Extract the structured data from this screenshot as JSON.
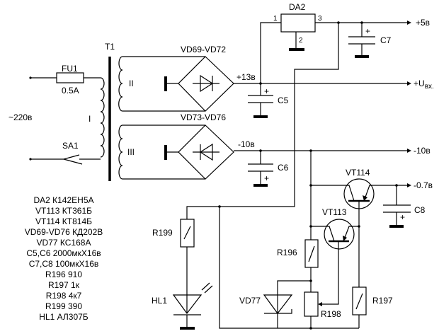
{
  "labels": {
    "t1": "T1",
    "fu1": "FU1",
    "fu1_rating": "0.5A",
    "mains": "~220в",
    "winding_1": "I",
    "winding_2": "II",
    "winding_3": "III",
    "sa1": "SA1",
    "bridge_1": "VD69-VD72",
    "bridge_2": "VD73-VD76",
    "da2": "DA2",
    "pin1": "1",
    "pin2": "2",
    "pin3": "3",
    "v13": "+13в",
    "vminus10": "-10в",
    "c5": "C5",
    "c6": "C6",
    "c7": "C7",
    "c8": "C8",
    "plus": "+",
    "vt114": "VT114",
    "vt113": "VT113",
    "r196": "R196",
    "r197": "R197",
    "r198": "R198",
    "r199": "R199",
    "hl1": "HL1",
    "vd77": "VD77"
  },
  "outputs": {
    "plus5": "+5в",
    "uin": "+U",
    "uin_sub": "вх.",
    "minus10": "-10в",
    "minus07": "-0.7в"
  },
  "parts_list": [
    "DA2 К142ЕН5А",
    "VT113 КТ361Б",
    "VT114 КТ814Б",
    "VD69-VD76 КД202В",
    "VD77 КС168А",
    "C5,C6 2000мкХ16в",
    "C7,C8 100мкХ16в",
    "R196 910",
    "R197 1к",
    "R198 4к7",
    "R199 390",
    "HL1 АЛ307Б"
  ]
}
